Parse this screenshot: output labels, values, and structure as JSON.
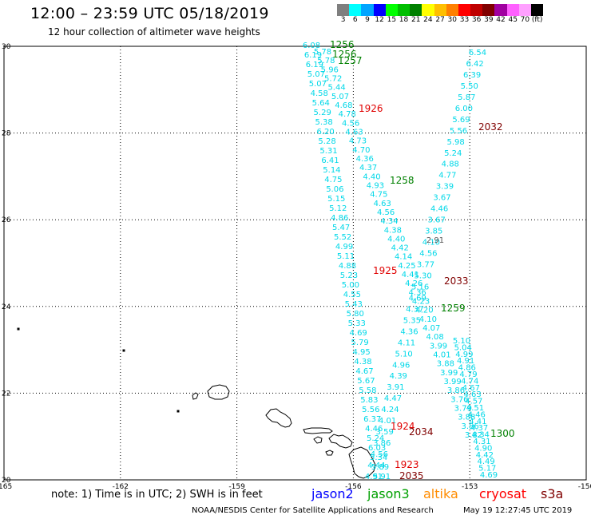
{
  "title": "12:00 – 23:59 UTC 05/18/2019",
  "subtitle": "12 hour collection of altimeter wave heights",
  "legend": {
    "unit": "(ft)",
    "colors": [
      "#7f7f7f",
      "#00ffff",
      "#00a5ff",
      "#0000ff",
      "#00ff00",
      "#00bf00",
      "#008000",
      "#ffff00",
      "#ffbf00",
      "#ff8000",
      "#ff0000",
      "#bf0000",
      "#800000",
      "#a000a0",
      "#ff60ff",
      "#ffa0ff",
      "#000000"
    ],
    "labels": [
      "3",
      "6",
      "9",
      "12",
      "15",
      "18",
      "21",
      "24",
      "27",
      "30",
      "33",
      "36",
      "39",
      "42",
      "45",
      "70",
      "(ft)"
    ]
  },
  "map": {
    "lon_ticks": [
      "-165",
      "-162",
      "-159",
      "-156",
      "-153",
      "-150"
    ],
    "lat_ticks": [
      "20",
      "22",
      "24",
      "26",
      "28",
      "30"
    ]
  },
  "tracks": {
    "jason3_far": [
      "6.08",
      "6.19",
      "6.19",
      "5.07",
      "5.07",
      "4.58",
      "5.64",
      "5.29",
      "5.38",
      "6.20",
      "5.28",
      "5.31",
      "6.41",
      "5.14",
      "4.75",
      "5.06",
      "5.15",
      "5.12",
      "4.86",
      "5.47",
      "5.52",
      "4.99",
      "5.11",
      "4.88",
      "5.23",
      "5.00",
      "4.55",
      "5.43",
      "5.80",
      "5.33",
      "4.69",
      "5.79",
      "4.95",
      "4.38",
      "4.67",
      "5.67",
      "5.58",
      "5.83",
      "5.56",
      "6.37",
      "4.46",
      "5.24",
      "6.03",
      "5.34",
      "5.89",
      "5.91"
    ],
    "jason3_near": [
      "5.78",
      "5.78",
      "5.96",
      "5.72",
      "5.44",
      "5.07",
      "4.68",
      "4.78",
      "4.56",
      "4.63",
      "4.73",
      "4.70",
      "4.36",
      "4.37",
      "4.40",
      "4.93",
      "4.75",
      "4.63",
      "4.56",
      "4.34",
      "4.38",
      "4.40",
      "4.42",
      "4.14",
      "4.25",
      "4.41",
      "4.26",
      "4.36",
      "4.23",
      "4.20",
      "4.10",
      "4.07",
      "4.08",
      "3.99",
      "4.01",
      "3.88",
      "3.99",
      "3.99",
      "3.86",
      "3.76",
      "3.79",
      "3.88",
      "3.86",
      "3.82"
    ],
    "jason3_east": [
      "6.54",
      "6.42",
      "6.39",
      "5.50",
      "5.87",
      "6.00",
      "5.69",
      "5.56",
      "5.98",
      "5.24",
      "4.88",
      "4.77",
      "3.39",
      "3.67",
      "4.46",
      "3.67",
      "3.85",
      "4.10",
      "4.56",
      "3.77",
      "5.30",
      "5.16",
      "4.69",
      "4.37",
      "5.35",
      "4.36",
      "4.11",
      "5.10",
      "4.96",
      "4.39",
      "3.91",
      "4.47",
      "4.24",
      "4.01",
      "3.59",
      "3.86",
      "4.56",
      "4.44",
      "4.91"
    ],
    "far_east": [
      "5.10",
      "5.04",
      "4.99",
      "4.91",
      "4.86",
      "4.79",
      "4.74",
      "4.67",
      "4.63",
      "4.57",
      "4.51",
      "4.46",
      "4.41",
      "4.37",
      "4.34",
      "4.31",
      "4.90",
      "4.42",
      "4.49",
      "5.17",
      "4.69"
    ],
    "gray_values": [
      "2.91"
    ]
  },
  "time_labels": [
    {
      "text": "1256",
      "color": "green"
    },
    {
      "text": "1256",
      "color": "green"
    },
    {
      "text": "1257",
      "color": "green"
    },
    {
      "text": "1926",
      "color": "red"
    },
    {
      "text": "2032",
      "color": "darkred"
    },
    {
      "text": "1258",
      "color": "green"
    },
    {
      "text": "1925",
      "color": "red"
    },
    {
      "text": "2033",
      "color": "darkred"
    },
    {
      "text": "1259",
      "color": "green"
    },
    {
      "text": "1924",
      "color": "red"
    },
    {
      "text": "2034",
      "color": "darkred"
    },
    {
      "text": "1300",
      "color": "green"
    },
    {
      "text": "1923",
      "color": "red"
    },
    {
      "text": "2035",
      "color": "darkred"
    }
  ],
  "footer": {
    "note": "note:  1) Time is in UTC;  2) SWH is in feet",
    "satellites": [
      {
        "name": "jason2",
        "color": "#0000ff"
      },
      {
        "name": "jason3",
        "color": "#00a000"
      },
      {
        "name": "altika",
        "color": "#ff8c00"
      },
      {
        "name": "cryosat",
        "color": "#ff0000"
      },
      {
        "name": "s3a",
        "color": "#800000"
      }
    ],
    "credit": "NOAA/NESDIS Center for Satellite Applications and Research",
    "timestamp": "May 19 12:27:45 UTC 2019"
  }
}
